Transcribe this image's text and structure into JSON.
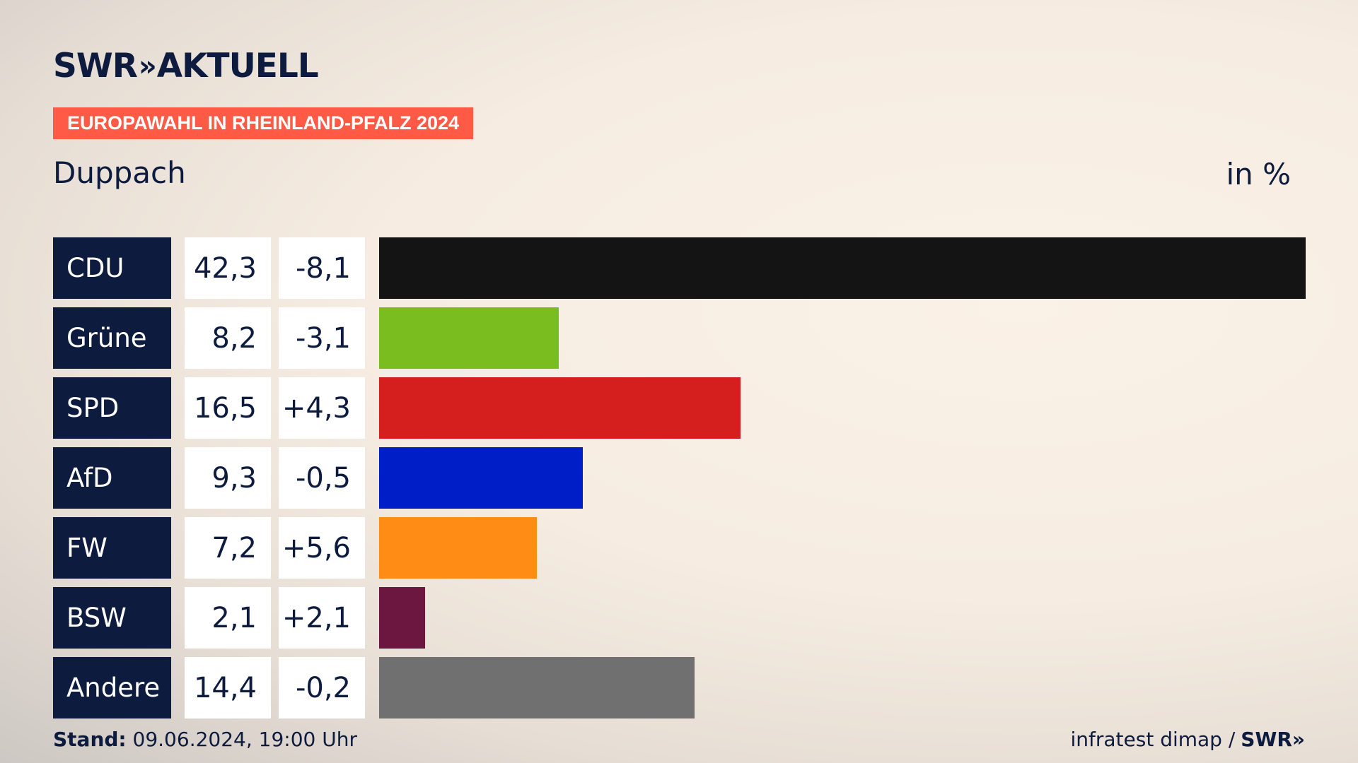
{
  "header": {
    "logo_brand": "SWR",
    "logo_chevrons": "»",
    "logo_section": "AKTUELL",
    "tag": "EUROPAWAHL IN RHEINLAND-PFALZ 2024",
    "place": "Duppach",
    "unit": "in %"
  },
  "chart_data": {
    "type": "bar",
    "orientation": "horizontal",
    "categories": [
      "CDU",
      "Grüne",
      "SPD",
      "AfD",
      "FW",
      "BSW",
      "Andere"
    ],
    "values": [
      42.3,
      8.2,
      16.5,
      9.3,
      7.2,
      2.1,
      14.4
    ],
    "value_labels": [
      "42,3",
      "8,2",
      "16,5",
      "9,3",
      "7,2",
      "2,1",
      "14,4"
    ],
    "diff_labels": [
      "-8,1",
      "-3,1",
      "+4,3",
      "-0,5",
      "+5,6",
      "+2,1",
      "-0,2"
    ],
    "colors": [
      "#141414",
      "#7abd1e",
      "#d51f1f",
      "#001ec8",
      "#ff8c14",
      "#6b1740",
      "#707070"
    ],
    "xlim": [
      0,
      42.3
    ]
  },
  "footer": {
    "stand_label": "Stand:",
    "stand_value": "09.06.2024, 19:00 Uhr",
    "source": "infratest dimap /",
    "source_logo": "SWR»"
  }
}
